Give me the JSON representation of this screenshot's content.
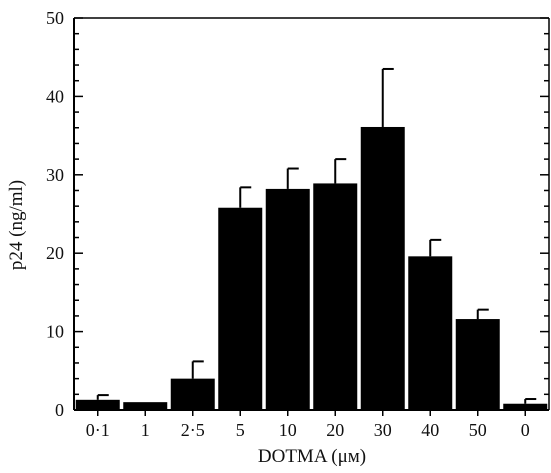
{
  "chart_data": {
    "type": "bar",
    "categories": [
      "0·1",
      "1",
      "2·5",
      "5",
      "10",
      "20",
      "30",
      "40",
      "50",
      "0"
    ],
    "values": [
      1.3,
      1.0,
      4.0,
      25.8,
      28.2,
      28.9,
      36.1,
      19.6,
      11.6,
      0.8
    ],
    "errors": [
      0.6,
      0.0,
      2.2,
      2.6,
      2.6,
      3.1,
      7.4,
      2.1,
      1.2,
      0.6
    ],
    "xlabel": "DOTMA (μм)",
    "ylabel": "p24 (ng/ml)",
    "ylim": [
      0,
      50
    ],
    "yticks": [
      "0",
      "10",
      "20",
      "30",
      "40",
      "50"
    ],
    "grid": false,
    "bar_color": "#000000"
  }
}
